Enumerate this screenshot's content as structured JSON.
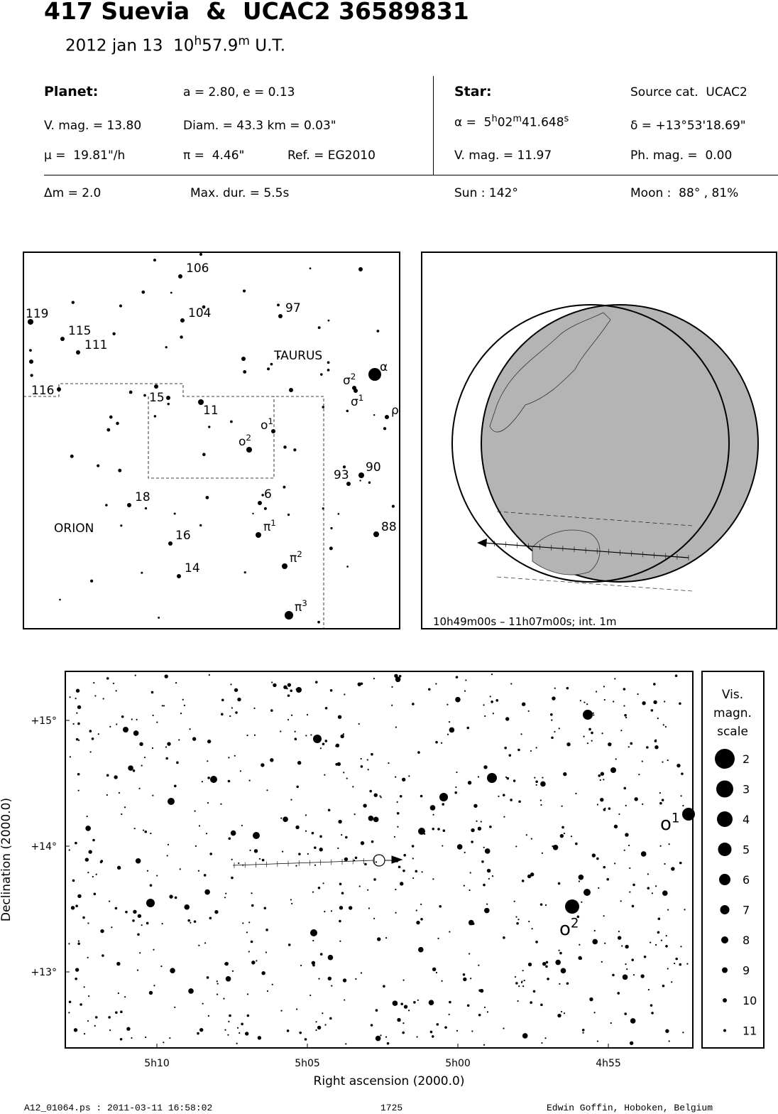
{
  "header": {
    "title": "417 Suevia  &  UCAC2 36589831",
    "date": "2012 jan 13  10",
    "time_h": "h",
    "time_min": "57.9",
    "time_m": "m",
    "time_ut": " U.T."
  },
  "planet": {
    "label": "Planet:",
    "orbit": "a = 2.80, e = 0.13",
    "vmag": "V. mag. = 13.80",
    "diam": "Diam. = 43.3 km = 0.03\"",
    "motion": "μ =  19.81\"/h",
    "parallax": "π =  4.46\"",
    "ref": "Ref. = EG2010"
  },
  "star": {
    "label": "Star:",
    "source": "Source cat.  UCAC2",
    "alpha": "α =  5",
    "alpha_h": "h",
    "alpha_min": "02",
    "alpha_m": "m",
    "alpha_sec": "41.648",
    "alpha_s": "s",
    "delta": "δ = +13°53'18.69\"",
    "vmag": "V. mag. = 11.97",
    "phmag": "Ph. mag. =  0.00"
  },
  "summary": {
    "dm": "Δm = 2.0",
    "maxdur": "Max. dur. = 5.5s",
    "sun": "Sun : 142°",
    "moon": "Moon :  88° , 81%"
  },
  "finder": {
    "labels": [
      "106",
      "119",
      "104",
      "97",
      "115",
      "111",
      "TAURUS",
      "α",
      {
        "text": "σ",
        "sup": "2"
      },
      "116",
      "15",
      "11",
      {
        "text": "σ",
        "sup": "1"
      },
      "ρ",
      {
        "text": "ο",
        "sup": "1"
      },
      {
        "text": "ο",
        "sup": "2"
      },
      "93",
      "90",
      "18",
      "6",
      "ORION",
      {
        "text": "π",
        "sup": "1"
      },
      "88",
      "16",
      {
        "text": "π",
        "sup": "2"
      },
      "14",
      {
        "text": "π",
        "sup": "3"
      }
    ]
  },
  "globe": {
    "caption": "10h49m00s – 11h07m00s; int.  1m"
  },
  "starchart": {
    "ylabel": "Declination (2000.0)",
    "xlabel": "Right ascension (2000.0)",
    "yticks": [
      "+15°",
      "+14°",
      "+13°"
    ],
    "xticks": [
      "5h10",
      "5h05",
      "5h00",
      "4h55"
    ],
    "labels": [
      {
        "text": "ο",
        "sup": "1"
      },
      {
        "text": "ο",
        "sup": "2"
      }
    ]
  },
  "legend": {
    "title": [
      "Vis.",
      "magn.",
      "scale"
    ],
    "magnitudes": [
      "2",
      "3",
      "4",
      "5",
      "6",
      "7",
      "8",
      "9",
      "10",
      "11"
    ]
  },
  "footer": {
    "file": "A12_01064.ps : 2011-03-11 16:58:02",
    "number": "1725",
    "author": "Edwin Goffin, Hoboken, Belgium"
  }
}
